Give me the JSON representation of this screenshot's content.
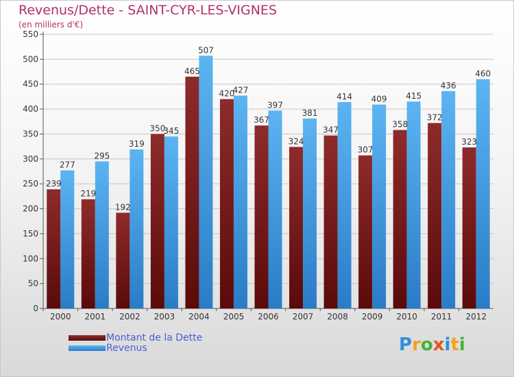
{
  "page": {
    "title": "Revenus/Dette - SAINT-CYR-LES-VIGNES",
    "subtitle": "(en milliers d'€)"
  },
  "brand": {
    "text": "Proxiti",
    "letters": [
      {
        "ch": "P",
        "color": "#2d8fd8"
      },
      {
        "ch": "r",
        "color": "#f2a21b"
      },
      {
        "ch": "o",
        "color": "#4caf3a"
      },
      {
        "ch": "x",
        "color": "#e2531f"
      },
      {
        "ch": "i",
        "color": "#2d8fd8"
      },
      {
        "ch": "t",
        "color": "#f2a21b"
      },
      {
        "ch": "i",
        "color": "#4caf3a"
      }
    ]
  },
  "chart_data": {
    "type": "bar",
    "categories": [
      "2000",
      "2001",
      "2002",
      "2003",
      "2004",
      "2005",
      "2006",
      "2007",
      "2008",
      "2009",
      "2010",
      "2011",
      "2012"
    ],
    "series": [
      {
        "name": "Montant de la Dette",
        "color": "#7a1c1c",
        "values": [
          239,
          219,
          192,
          350,
          465,
          420,
          367,
          324,
          347,
          307,
          358,
          372,
          323
        ]
      },
      {
        "name": "Revenus",
        "color": "#4aa3e8",
        "values": [
          277,
          295,
          319,
          345,
          507,
          427,
          397,
          381,
          414,
          409,
          415,
          436,
          460
        ]
      }
    ],
    "yticks": [
      0,
      50,
      100,
      150,
      200,
      250,
      300,
      350,
      400,
      450,
      500,
      550
    ],
    "ylim": [
      0,
      550
    ],
    "grid": true,
    "legend": "bottom-left"
  }
}
